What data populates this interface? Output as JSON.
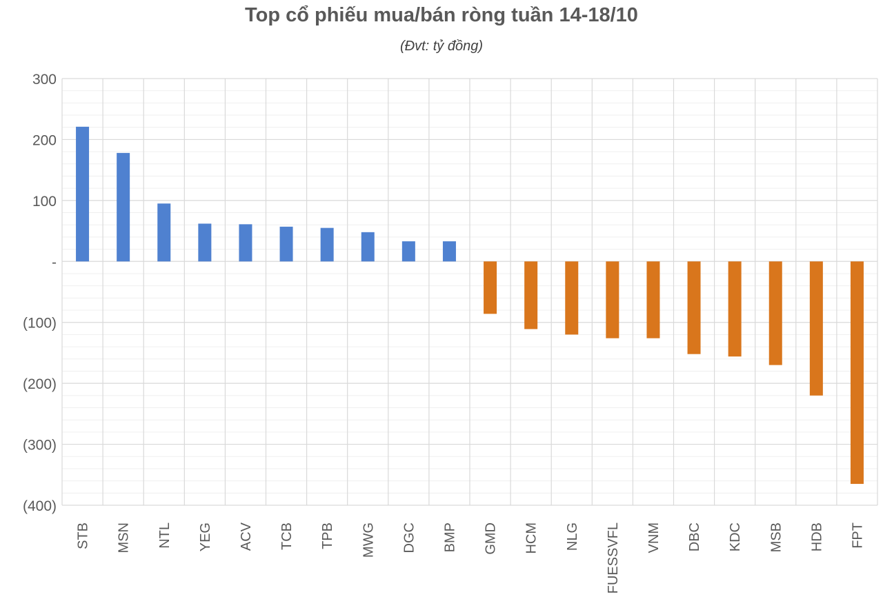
{
  "chart_data": {
    "type": "bar",
    "title": "Top cổ phiếu mua/bán ròng tuần 14-18/10",
    "subtitle": "(Đvt: tỷ đồng)",
    "categories": [
      "STB",
      "MSN",
      "NTL",
      "YEG",
      "ACV",
      "TCB",
      "TPB",
      "MWG",
      "DGC",
      "BMP",
      "GMD",
      "HCM",
      "NLG",
      "FUESSVFL",
      "VNM",
      "DBC",
      "KDC",
      "MSB",
      "HDB",
      "FPT"
    ],
    "values": [
      221,
      178,
      95,
      62,
      61,
      57,
      55,
      48,
      33,
      33,
      -86,
      -111,
      -120,
      -126,
      -126,
      -152,
      -156,
      -170,
      -220,
      -365
    ],
    "ylim": [
      -400,
      300
    ],
    "yticks": [
      300,
      200,
      100,
      0,
      -100,
      -200,
      -300,
      -400
    ],
    "ytick_labels": [
      "300",
      "200",
      "100",
      "-",
      "(100)",
      "(200)",
      "(300)",
      "(400)"
    ],
    "colors": {
      "positive": "#4f81d0",
      "negative": "#d9761c",
      "grid": "#d9d9d9",
      "minor_grid": "#efefef"
    },
    "grid": true
  }
}
